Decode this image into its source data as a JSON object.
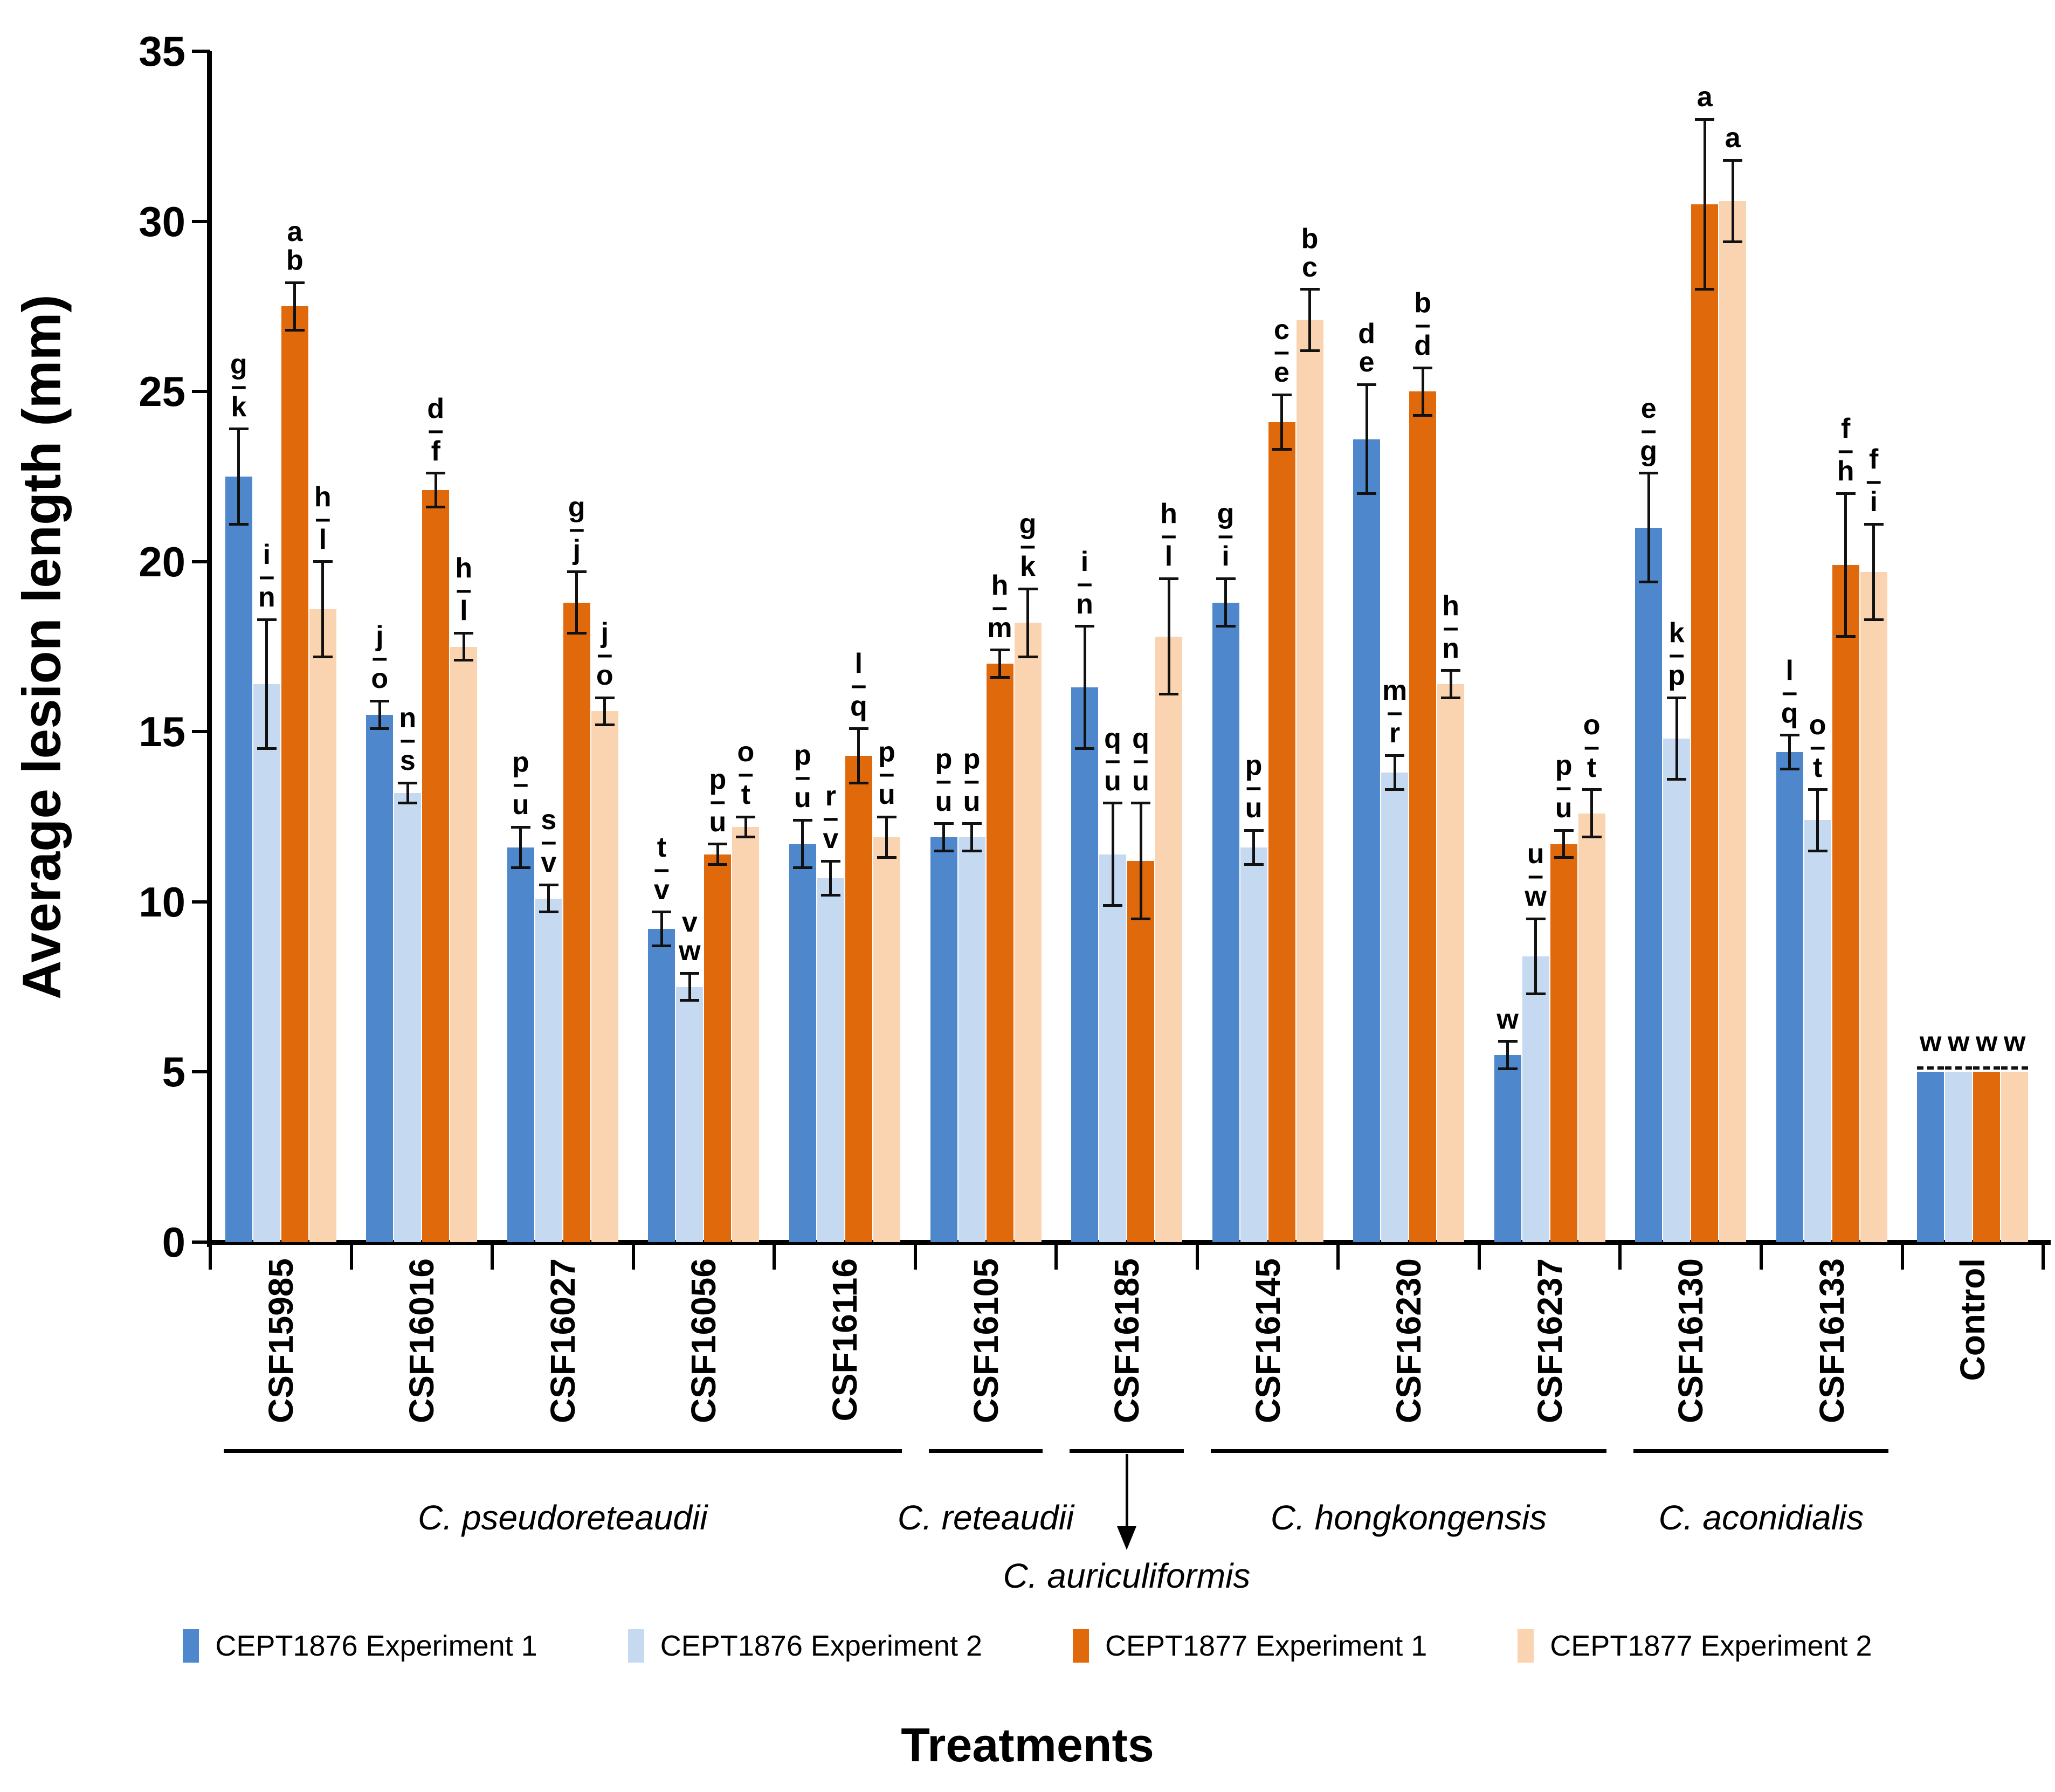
{
  "y_axis": {
    "label": "Average lesion length (mm)",
    "ticks": [
      0,
      5,
      10,
      15,
      20,
      25,
      30,
      35
    ],
    "max": 35
  },
  "x_axis": {
    "title": "Treatments"
  },
  "legend": [
    {
      "label": "CEPT1876 Experiment 1",
      "color": "#4E87CB"
    },
    {
      "label": "CEPT1876 Experiment 2",
      "color": "#C5D9F1"
    },
    {
      "label": "CEPT1877 Experiment 1",
      "color": "#E0690B"
    },
    {
      "label": "CEPT1877 Experiment 2",
      "color": "#FAD4B0"
    }
  ],
  "species_groups": [
    {
      "name": "C. pseudoreteaudii",
      "start": 0,
      "end": 4,
      "arrow": false
    },
    {
      "name": "C. reteaudii",
      "start": 5,
      "end": 5,
      "arrow": false
    },
    {
      "name": "C. auriculiformis",
      "start": 6,
      "end": 6,
      "arrow": true
    },
    {
      "name": "C. hongkongensis",
      "start": 7,
      "end": 9,
      "arrow": false
    },
    {
      "name": "C. aconidialis",
      "start": 10,
      "end": 11,
      "arrow": false
    }
  ],
  "chart_data": {
    "type": "bar",
    "title": "",
    "xlabel": "Treatments",
    "ylabel": "Average lesion length (mm)",
    "ylim": [
      0,
      35
    ],
    "grid": false,
    "legend_position": "bottom",
    "categories": [
      "CSF15985",
      "CSF16016",
      "CSF16027",
      "CSF16056",
      "CSF16116",
      "CSF16105",
      "CSF16185",
      "CSF16145",
      "CSF16230",
      "CSF16237",
      "CSF16130",
      "CSF16133",
      "Control"
    ],
    "series": [
      {
        "name": "CEPT1876 Experiment 1",
        "color": "#4E87CB",
        "values": [
          22.5,
          15.5,
          11.6,
          9.2,
          11.7,
          11.9,
          16.3,
          18.8,
          23.6,
          5.5,
          21.0,
          14.4,
          5.0
        ],
        "errors": [
          1.4,
          0.4,
          0.6,
          0.5,
          0.7,
          0.4,
          1.8,
          0.7,
          1.6,
          0.4,
          1.6,
          0.5,
          0
        ],
        "letters": [
          [
            "g",
            "–",
            "k"
          ],
          [
            "j",
            "–",
            "o"
          ],
          [
            "p",
            "–",
            "u"
          ],
          [
            "t",
            "–",
            "v"
          ],
          [
            "p",
            "–",
            "u"
          ],
          [
            "p",
            "–",
            "u"
          ],
          [
            "i",
            "–",
            "n"
          ],
          [
            "g",
            "–",
            "i"
          ],
          [
            "d",
            "e"
          ],
          [
            "w"
          ],
          [
            "e",
            "–",
            "g"
          ],
          [
            "l",
            "–",
            "q"
          ],
          [
            "w"
          ]
        ]
      },
      {
        "name": "CEPT1876 Experiment 2",
        "color": "#C5D9F1",
        "values": [
          16.4,
          13.2,
          10.1,
          7.5,
          10.7,
          11.9,
          11.4,
          11.6,
          13.8,
          8.4,
          14.8,
          12.4,
          5.0
        ],
        "errors": [
          1.9,
          0.3,
          0.4,
          0.4,
          0.5,
          0.4,
          1.5,
          0.5,
          0.5,
          1.1,
          1.2,
          0.9,
          0
        ],
        "letters": [
          [
            "i",
            "–",
            "n"
          ],
          [
            "n",
            "–",
            "s"
          ],
          [
            "s",
            "–",
            "v"
          ],
          [
            "v",
            "w"
          ],
          [
            "r",
            "–",
            "v"
          ],
          [
            "p",
            "–",
            "u"
          ],
          [
            "q",
            "–",
            "u"
          ],
          [
            "p",
            "–",
            "u"
          ],
          [
            "m",
            "–",
            "r"
          ],
          [
            "u",
            "–",
            "w"
          ],
          [
            "k",
            "–",
            "p"
          ],
          [
            "o",
            "–",
            "t"
          ],
          [
            "w"
          ]
        ]
      },
      {
        "name": "CEPT1877 Experiment 1",
        "color": "#E0690B",
        "values": [
          27.5,
          22.1,
          18.8,
          11.4,
          14.3,
          17.0,
          11.2,
          24.1,
          25.0,
          11.7,
          30.5,
          19.9,
          5.0
        ],
        "errors": [
          0.7,
          0.5,
          0.9,
          0.3,
          0.8,
          0.4,
          1.7,
          0.8,
          0.7,
          0.4,
          2.5,
          2.1,
          0
        ],
        "letters": [
          [
            "a",
            "b"
          ],
          [
            "d",
            "–",
            "f"
          ],
          [
            "g",
            "–",
            "j"
          ],
          [
            "p",
            "–",
            "u"
          ],
          [
            "l",
            "–",
            "q"
          ],
          [
            "h",
            "–",
            "m"
          ],
          [
            "q",
            "–",
            "u"
          ],
          [
            "c",
            "–",
            "e"
          ],
          [
            "b",
            "–",
            "d"
          ],
          [
            "p",
            "–",
            "u"
          ],
          [
            "a"
          ],
          [
            "f",
            "–",
            "h"
          ],
          [
            "w"
          ]
        ]
      },
      {
        "name": "CEPT1877 Experiment 2",
        "color": "#FAD4B0",
        "values": [
          18.6,
          17.5,
          15.6,
          12.2,
          11.9,
          18.2,
          17.8,
          27.1,
          16.4,
          12.6,
          30.6,
          19.7,
          5.0
        ],
        "errors": [
          1.4,
          0.4,
          0.4,
          0.3,
          0.6,
          1.0,
          1.7,
          0.9,
          0.4,
          0.7,
          1.2,
          1.4,
          0
        ],
        "letters": [
          [
            "h",
            "–",
            "l"
          ],
          [
            "h",
            "–",
            "l"
          ],
          [
            "j",
            "–",
            "o"
          ],
          [
            "o",
            "–",
            "t"
          ],
          [
            "p",
            "–",
            "u"
          ],
          [
            "g",
            "–",
            "k"
          ],
          [
            "h",
            "–",
            "l"
          ],
          [
            "b",
            "c"
          ],
          [
            "h",
            "–",
            "n"
          ],
          [
            "o",
            "–",
            "t"
          ],
          [
            "a"
          ],
          [
            "f",
            "–",
            "i"
          ],
          [
            "w"
          ]
        ]
      }
    ]
  }
}
